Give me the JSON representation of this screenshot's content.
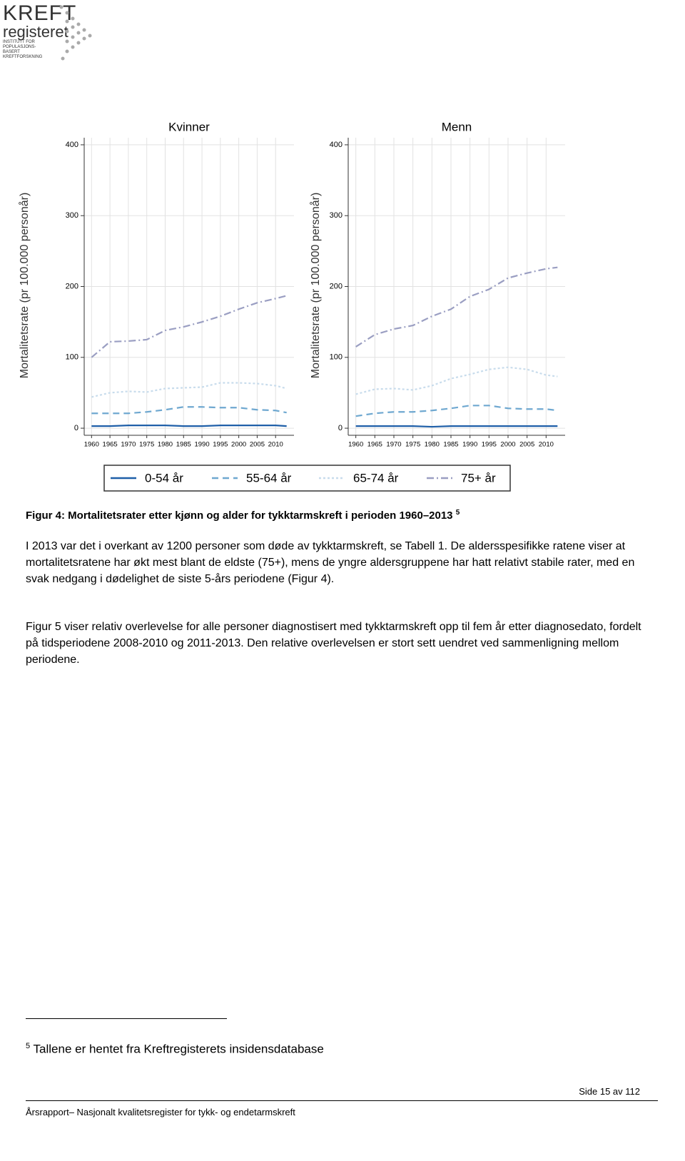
{
  "header": {
    "logo_title": "KREFT",
    "logo_subtitle": "registeret",
    "logo_tagline": "INSTITUTT FOR POPULASJONS-BASERT KREFTFORSKNING"
  },
  "chart_data": [
    {
      "type": "line",
      "title": "Kvinner",
      "y_label": "Mortalitetsrate (pr 100.000 personår)",
      "x": [
        1960,
        1965,
        1970,
        1975,
        1980,
        1985,
        1990,
        1995,
        2000,
        2005,
        2010,
        2013
      ],
      "series": [
        {
          "values": [
            3,
            3,
            4,
            4,
            4,
            3,
            3,
            4,
            4,
            4,
            4,
            3
          ]
        },
        {
          "values": [
            21,
            21,
            21,
            23,
            26,
            30,
            30,
            29,
            29,
            26,
            25,
            22
          ]
        },
        {
          "values": [
            44,
            50,
            52,
            51,
            56,
            57,
            58,
            64,
            64,
            63,
            60,
            56
          ]
        },
        {
          "values": [
            100,
            122,
            123,
            125,
            138,
            143,
            150,
            158,
            168,
            177,
            183,
            187
          ]
        }
      ],
      "xlim": [
        1958,
        2015
      ],
      "ylim": [
        -10,
        410
      ],
      "xticks": [
        1960,
        1965,
        1970,
        1975,
        1980,
        1985,
        1990,
        1995,
        2000,
        2005,
        2010
      ],
      "yticks": [
        0,
        100,
        200,
        300,
        400
      ],
      "grid": true
    },
    {
      "type": "line",
      "title": "Menn",
      "y_label": "Mortalitetsrate (pr 100.000 personår)",
      "x": [
        1960,
        1965,
        1970,
        1975,
        1980,
        1985,
        1990,
        1995,
        2000,
        2005,
        2010,
        2013
      ],
      "series": [
        {
          "values": [
            3,
            3,
            3,
            3,
            2,
            3,
            3,
            3,
            3,
            3,
            3,
            3
          ]
        },
        {
          "values": [
            17,
            21,
            23,
            23,
            25,
            28,
            32,
            32,
            28,
            27,
            27,
            25
          ]
        },
        {
          "values": [
            48,
            55,
            56,
            54,
            60,
            70,
            76,
            83,
            86,
            83,
            75,
            73
          ]
        },
        {
          "values": [
            115,
            132,
            140,
            145,
            158,
            168,
            186,
            196,
            212,
            219,
            225,
            227
          ]
        }
      ],
      "xlim": [
        1958,
        2015
      ],
      "ylim": [
        -10,
        410
      ],
      "xticks": [
        1960,
        1965,
        1970,
        1975,
        1980,
        1985,
        1990,
        1995,
        2000,
        2005,
        2010
      ],
      "yticks": [
        0,
        100,
        200,
        300,
        400
      ],
      "grid": true
    }
  ],
  "legend": [
    {
      "name": "0-54 år",
      "color": "#1f5fa8",
      "dash": "none"
    },
    {
      "name": "55-64 år",
      "color": "#6fa8d0",
      "dash": "9 6"
    },
    {
      "name": "65-74 år",
      "color": "#c8dcec",
      "dash": "3 3"
    },
    {
      "name": "75+ år",
      "color": "#9a9ec2",
      "dash": "10 4 2 4"
    }
  ],
  "caption": {
    "text": "Figur 4: Mortalitetsrater etter kjønn og alder for tykktarmskreft i perioden 1960–2013",
    "footnote_ref": "5"
  },
  "paragraphs": [
    "I 2013 var det i overkant av 1200 personer som døde av tykktarmskreft, se Tabell 1. De aldersspesifikke ratene viser at mortalitetsratene har økt mest blant de eldste (75+), mens de yngre aldersgruppene har hatt relativt stabile rater, med en svak nedgang i dødelighet de siste 5-års periodene (Figur 4).",
    "Figur 5 viser relativ overlevelse for alle personer diagnostisert med tykktarmskreft opp til fem år etter diagnosedato, fordelt på tidsperiodene 2008-2010 og 2011-2013. Den relative overlevelsen er stort sett uendret ved sammenligning mellom periodene."
  ],
  "footnote": {
    "number": "5",
    "text": "Tallene er hentet fra Kreftregisterets insidensdatabase"
  },
  "footer": {
    "page": "Side 15 av 112",
    "title": "Årsrapport– Nasjonalt kvalitetsregister for tykk- og endetarmskreft"
  }
}
